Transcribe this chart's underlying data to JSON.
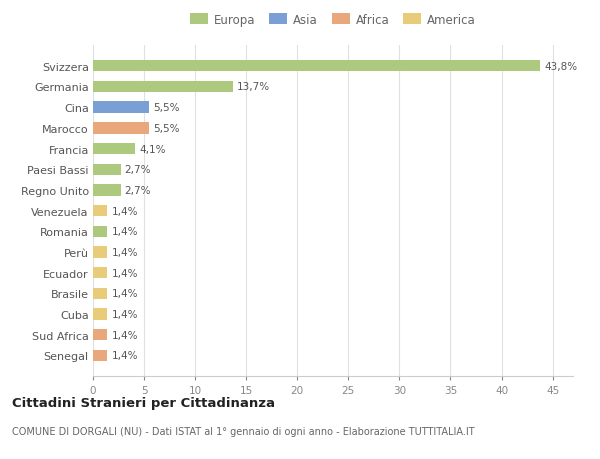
{
  "categories": [
    "Svizzera",
    "Germania",
    "Cina",
    "Marocco",
    "Francia",
    "Paesi Bassi",
    "Regno Unito",
    "Venezuela",
    "Romania",
    "Perù",
    "Ecuador",
    "Brasile",
    "Cuba",
    "Sud Africa",
    "Senegal"
  ],
  "values": [
    43.8,
    13.7,
    5.5,
    5.5,
    4.1,
    2.7,
    2.7,
    1.4,
    1.4,
    1.4,
    1.4,
    1.4,
    1.4,
    1.4,
    1.4
  ],
  "labels": [
    "43,8%",
    "13,7%",
    "5,5%",
    "5,5%",
    "4,1%",
    "2,7%",
    "2,7%",
    "1,4%",
    "1,4%",
    "1,4%",
    "1,4%",
    "1,4%",
    "1,4%",
    "1,4%",
    "1,4%"
  ],
  "colors": [
    "#adc97e",
    "#adc97e",
    "#7a9fd4",
    "#e8a87c",
    "#adc97e",
    "#adc97e",
    "#adc97e",
    "#e8cc7a",
    "#adc97e",
    "#e8cc7a",
    "#e8cc7a",
    "#e8cc7a",
    "#e8cc7a",
    "#e8a87c",
    "#e8a87c"
  ],
  "legend_labels": [
    "Europa",
    "Asia",
    "Africa",
    "America"
  ],
  "legend_colors": [
    "#adc97e",
    "#7a9fd4",
    "#e8a87c",
    "#e8cc7a"
  ],
  "title": "Cittadini Stranieri per Cittadinanza",
  "subtitle": "COMUNE DI DORGALI (NU) - Dati ISTAT al 1° gennaio di ogni anno - Elaborazione TUTTITALIA.IT",
  "xlim": [
    0,
    47
  ],
  "xticks": [
    0,
    5,
    10,
    15,
    20,
    25,
    30,
    35,
    40,
    45
  ],
  "background_color": "#ffffff",
  "bar_background": "#ffffff",
  "grid_color": "#e0e0e0"
}
